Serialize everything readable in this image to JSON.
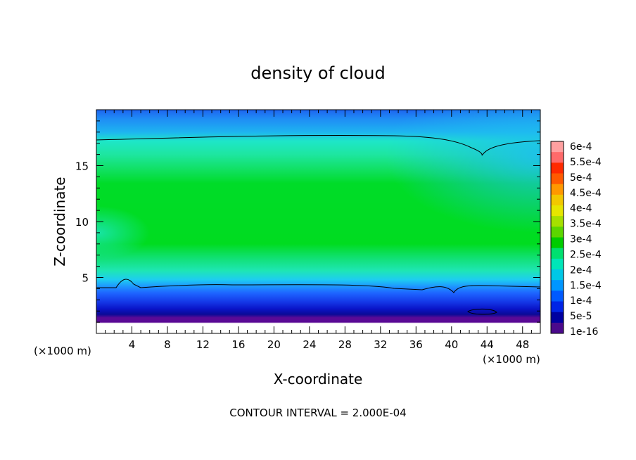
{
  "chart_data": {
    "type": "heatmap",
    "title": "density of cloud",
    "xlabel": "X-coordinate",
    "ylabel": "Z-coordinate",
    "x_unit_left": "(×1000 m)",
    "x_unit_right": "(×1000 m)",
    "footer": "CONTOUR INTERVAL = 2.000E-04",
    "xlim": [
      0,
      50
    ],
    "ylim": [
      0,
      20
    ],
    "xticks": [
      4,
      8,
      12,
      16,
      20,
      24,
      28,
      32,
      36,
      40,
      44,
      48
    ],
    "yticks": [
      5,
      10,
      15
    ],
    "colorbar": {
      "labels": [
        "6e-4",
        "5.5e-4",
        "5e-4",
        "4.5e-4",
        "4e-4",
        "3.5e-4",
        "3e-4",
        "2.5e-4",
        "2e-4",
        "1.5e-4",
        "1e-4",
        "5e-5",
        "1e-16"
      ],
      "colors": [
        "#ffa0a0",
        "#ff6a6a",
        "#ff2a00",
        "#ff5a00",
        "#ff9800",
        "#f2c800",
        "#e6e600",
        "#a6e000",
        "#5cd600",
        "#00cc00",
        "#00e070",
        "#00e6b8",
        "#00c8e6",
        "#0096ff",
        "#005aff",
        "#0024e6",
        "#0000a0",
        "#4a0a8c"
      ]
    },
    "layers": [
      {
        "z": [
          19.1,
          20
        ],
        "value": "8e-5"
      },
      {
        "z": [
          18.0,
          19.1
        ],
        "value": "1.5e-4"
      },
      {
        "z": [
          16.5,
          18.0
        ],
        "value": "2e-4"
      },
      {
        "z": [
          15.0,
          16.5
        ],
        "value": "2.4e-4"
      },
      {
        "z": [
          7.0,
          15.0
        ],
        "value": "2.8e-4"
      },
      {
        "z": [
          5.5,
          7.0
        ],
        "value": "2.3e-4"
      },
      {
        "z": [
          4.2,
          5.5
        ],
        "value": "1.8e-4"
      },
      {
        "z": [
          3.5,
          4.2
        ],
        "value": "1.3e-4"
      },
      {
        "z": [
          2.6,
          3.5
        ],
        "value": "8e-5"
      },
      {
        "z": [
          1.9,
          2.6
        ],
        "value": "4e-5"
      },
      {
        "z": [
          1.5,
          1.9
        ],
        "value": "1e-16"
      },
      {
        "z": [
          0,
          1.5
        ],
        "value": "0"
      }
    ],
    "contour_level": "2.000E-04"
  }
}
